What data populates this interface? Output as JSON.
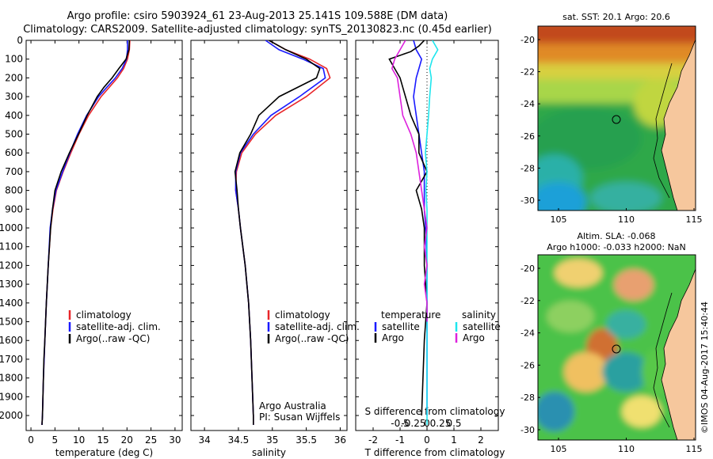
{
  "header": {
    "line1": "Argo profile: csiro 5903924_61 23-Aug-2013 25.141S 109.588E (DM data)",
    "line2": "Climatology: CARS2009. Satellite-adjusted climatology: synTS_20130823.nc (0.45d earlier)"
  },
  "colors": {
    "climatology": "#e8262a",
    "satellite": "#1a1aff",
    "argo": "#000000",
    "sal_satellite": "#1ee6ee",
    "sal_argo": "#dd22dd"
  },
  "chart_data": [
    {
      "type": "line",
      "id": "temperature",
      "xlabel": "temperature (deg C)",
      "xlim": [
        -1,
        31.5
      ],
      "xticks": [
        0,
        5,
        10,
        15,
        20,
        25,
        30
      ],
      "ylim": [
        2080,
        0
      ],
      "yticks": [
        0,
        100,
        200,
        300,
        400,
        500,
        600,
        700,
        800,
        900,
        1000,
        1100,
        1200,
        1300,
        1400,
        1500,
        1600,
        1700,
        1800,
        1900,
        2000
      ],
      "series": [
        {
          "name": "climatology",
          "color": "#e8262a",
          "y": [
            0,
            50,
            100,
            150,
            200,
            250,
            300,
            400,
            500,
            600,
            700,
            800,
            900,
            1000,
            1200,
            1400,
            1600,
            1800,
            2000,
            2050
          ],
          "values": [
            20.6,
            20.5,
            20.1,
            19.3,
            18.0,
            16.3,
            14.6,
            12.0,
            10.0,
            8.3,
            6.7,
            5.3,
            4.6,
            4.1,
            3.6,
            3.2,
            2.9,
            2.6,
            2.4,
            2.3
          ]
        },
        {
          "name": "satellite-adj. clim.",
          "color": "#1a1aff",
          "y": [
            0,
            50,
            100,
            150,
            200,
            250,
            300,
            400,
            500,
            600,
            700,
            800,
            900,
            1000,
            1200,
            1400,
            1600,
            1800,
            2000,
            2050
          ],
          "values": [
            20.1,
            20.1,
            19.9,
            19.0,
            17.6,
            15.8,
            14.1,
            11.6,
            9.7,
            8.1,
            6.6,
            5.2,
            4.5,
            4.0,
            3.6,
            3.2,
            2.9,
            2.6,
            2.4,
            2.3
          ]
        },
        {
          "name": "Argo(..raw -QC)",
          "color": "#000000",
          "y": [
            0,
            50,
            100,
            150,
            200,
            250,
            300,
            400,
            500,
            600,
            700,
            800,
            900,
            1000,
            1200,
            1400,
            1600,
            1700,
            2000,
            2050
          ],
          "values": [
            20.5,
            20.4,
            19.8,
            18.3,
            16.9,
            15.2,
            13.8,
            11.7,
            9.9,
            8.0,
            6.3,
            5.0,
            4.5,
            4.1,
            3.6,
            3.2,
            2.9,
            2.7,
            2.4,
            2.3
          ]
        }
      ],
      "legend": [
        "climatology",
        "satellite-adj. clim.",
        "Argo(..raw -QC)"
      ],
      "legend_position": "lower-right"
    },
    {
      "type": "line",
      "id": "salinity",
      "xlabel": "salinity",
      "xlim": [
        33.8,
        36.1
      ],
      "xticks": [
        34,
        34.5,
        35,
        35.5,
        36
      ],
      "ylim": [
        2080,
        0
      ],
      "series": [
        {
          "name": "climatology",
          "color": "#e8262a",
          "y": [
            0,
            50,
            100,
            150,
            200,
            300,
            400,
            500,
            600,
            700,
            800,
            900,
            1000,
            1200,
            1400,
            1600,
            1800,
            2000,
            2050
          ],
          "values": [
            34.95,
            35.2,
            35.55,
            35.8,
            35.85,
            35.5,
            35.05,
            34.75,
            34.55,
            34.47,
            34.46,
            34.5,
            34.53,
            34.6,
            34.65,
            34.68,
            34.7,
            34.72,
            34.72
          ]
        },
        {
          "name": "satellite-adj. clim.",
          "color": "#1a1aff",
          "y": [
            0,
            50,
            100,
            150,
            200,
            300,
            400,
            500,
            600,
            700,
            800,
            900,
            1000,
            1200,
            1400,
            1600,
            1800,
            2000,
            2050
          ],
          "values": [
            34.9,
            35.1,
            35.45,
            35.75,
            35.78,
            35.4,
            34.98,
            34.72,
            34.53,
            34.46,
            34.46,
            34.5,
            34.53,
            34.6,
            34.65,
            34.68,
            34.7,
            34.72,
            34.72
          ]
        },
        {
          "name": "Argo(..raw -QC)",
          "color": "#000000",
          "y": [
            0,
            50,
            100,
            150,
            200,
            300,
            400,
            500,
            600,
            700,
            800,
            900,
            1000,
            1200,
            1400,
            1600,
            1800,
            2000,
            2050
          ],
          "values": [
            34.95,
            35.2,
            35.5,
            35.7,
            35.65,
            35.1,
            34.8,
            34.68,
            34.52,
            34.45,
            34.48,
            34.5,
            34.53,
            34.6,
            34.65,
            34.68,
            34.7,
            34.72,
            34.72
          ]
        }
      ],
      "legend": [
        "climatology",
        "satellite-adj. clim.",
        "Argo(..raw -QC)"
      ],
      "legend_position": "lower-right",
      "annotation": [
        "Argo Australia",
        "PI: Susan Wijffels"
      ]
    },
    {
      "type": "line",
      "id": "differences",
      "xlabel_top": "S difference from climatology",
      "xlabel": "T difference from climatology",
      "xlim_T": [
        -2.5,
        2.5
      ],
      "xticks_T": [
        -2,
        -1,
        0,
        1,
        2
      ],
      "xticks_S": [
        "-0.5",
        "-0.25",
        "0",
        "0.25",
        "0.5"
      ],
      "ylim": [
        2080,
        0
      ],
      "series": [
        {
          "name": "temperature satellite",
          "color": "#1a1aff",
          "y": [
            0,
            50,
            100,
            150,
            200,
            300,
            400,
            500,
            600,
            700,
            800,
            900,
            1000,
            1200,
            1400,
            1600,
            1800,
            2000
          ],
          "values": [
            -0.5,
            -0.4,
            -0.2,
            -0.3,
            -0.4,
            -0.5,
            -0.4,
            -0.3,
            -0.2,
            -0.1,
            -0.1,
            -0.1,
            -0.05,
            0,
            0,
            0,
            0,
            0
          ]
        },
        {
          "name": "temperature Argo",
          "color": "#000000",
          "y": [
            0,
            30,
            60,
            100,
            150,
            200,
            250,
            300,
            350,
            400,
            500,
            600,
            700,
            800,
            900,
            1000,
            1200,
            1400,
            1600,
            1800,
            2000
          ],
          "values": [
            -0.1,
            -0.3,
            -0.6,
            -1.4,
            -1.2,
            -1.0,
            -0.9,
            -0.8,
            -0.7,
            -0.6,
            -0.3,
            -0.3,
            0,
            -0.4,
            -0.2,
            -0.1,
            -0.1,
            0,
            -0.1,
            -0.15,
            -0.2
          ]
        },
        {
          "name": "salinity satellite",
          "color": "#1ee6ee",
          "y": [
            0,
            50,
            100,
            150,
            200,
            300,
            400,
            500,
            600,
            700,
            800,
            900,
            1000,
            1200,
            1400,
            1600,
            1800,
            2000,
            2050
          ],
          "values": [
            0.1,
            0.2,
            0.1,
            0.05,
            0.08,
            0.05,
            0.03,
            0.0,
            -0.03,
            0.0,
            -0.02,
            0.0,
            0.0,
            0.0,
            0.0,
            0.0,
            0.0,
            0.0,
            0.0
          ]
        },
        {
          "name": "salinity Argo",
          "color": "#dd22dd",
          "y": [
            0,
            50,
            100,
            150,
            200,
            300,
            400,
            500,
            600,
            700,
            800,
            900,
            1000,
            1100,
            1200,
            1300,
            1400,
            1500
          ],
          "values": [
            -0.4,
            -0.5,
            -0.6,
            -0.65,
            -0.55,
            -0.5,
            -0.45,
            -0.3,
            -0.2,
            -0.15,
            -0.1,
            -0.05,
            0.0,
            -0.05,
            0.0,
            -0.05,
            0.0,
            0.0
          ]
        }
      ],
      "legend_temperature_header": "temperature",
      "legend_salinity_header": "salinity",
      "legend_labels": [
        "satellite",
        "Argo",
        "satellite",
        "Argo"
      ]
    }
  ],
  "maps": {
    "sst": {
      "title": "sat. SST: 20.1  Argo: 20.6",
      "yticks": [
        "-20",
        "-22",
        "-24",
        "-26",
        "-28",
        "-30"
      ],
      "xticks": [
        "105",
        "110",
        "115"
      ]
    },
    "sla": {
      "title_line1": "Altim. SLA: -0.068",
      "title_line2": "Argo h1000: -0.033 h2000: NaN",
      "yticks": [
        "-20",
        "-22",
        "-24",
        "-26",
        "-28",
        "-30"
      ],
      "xticks": [
        "105",
        "110",
        "115"
      ]
    }
  },
  "credit": "©IMOS 04-Aug-2017 15:40:44"
}
